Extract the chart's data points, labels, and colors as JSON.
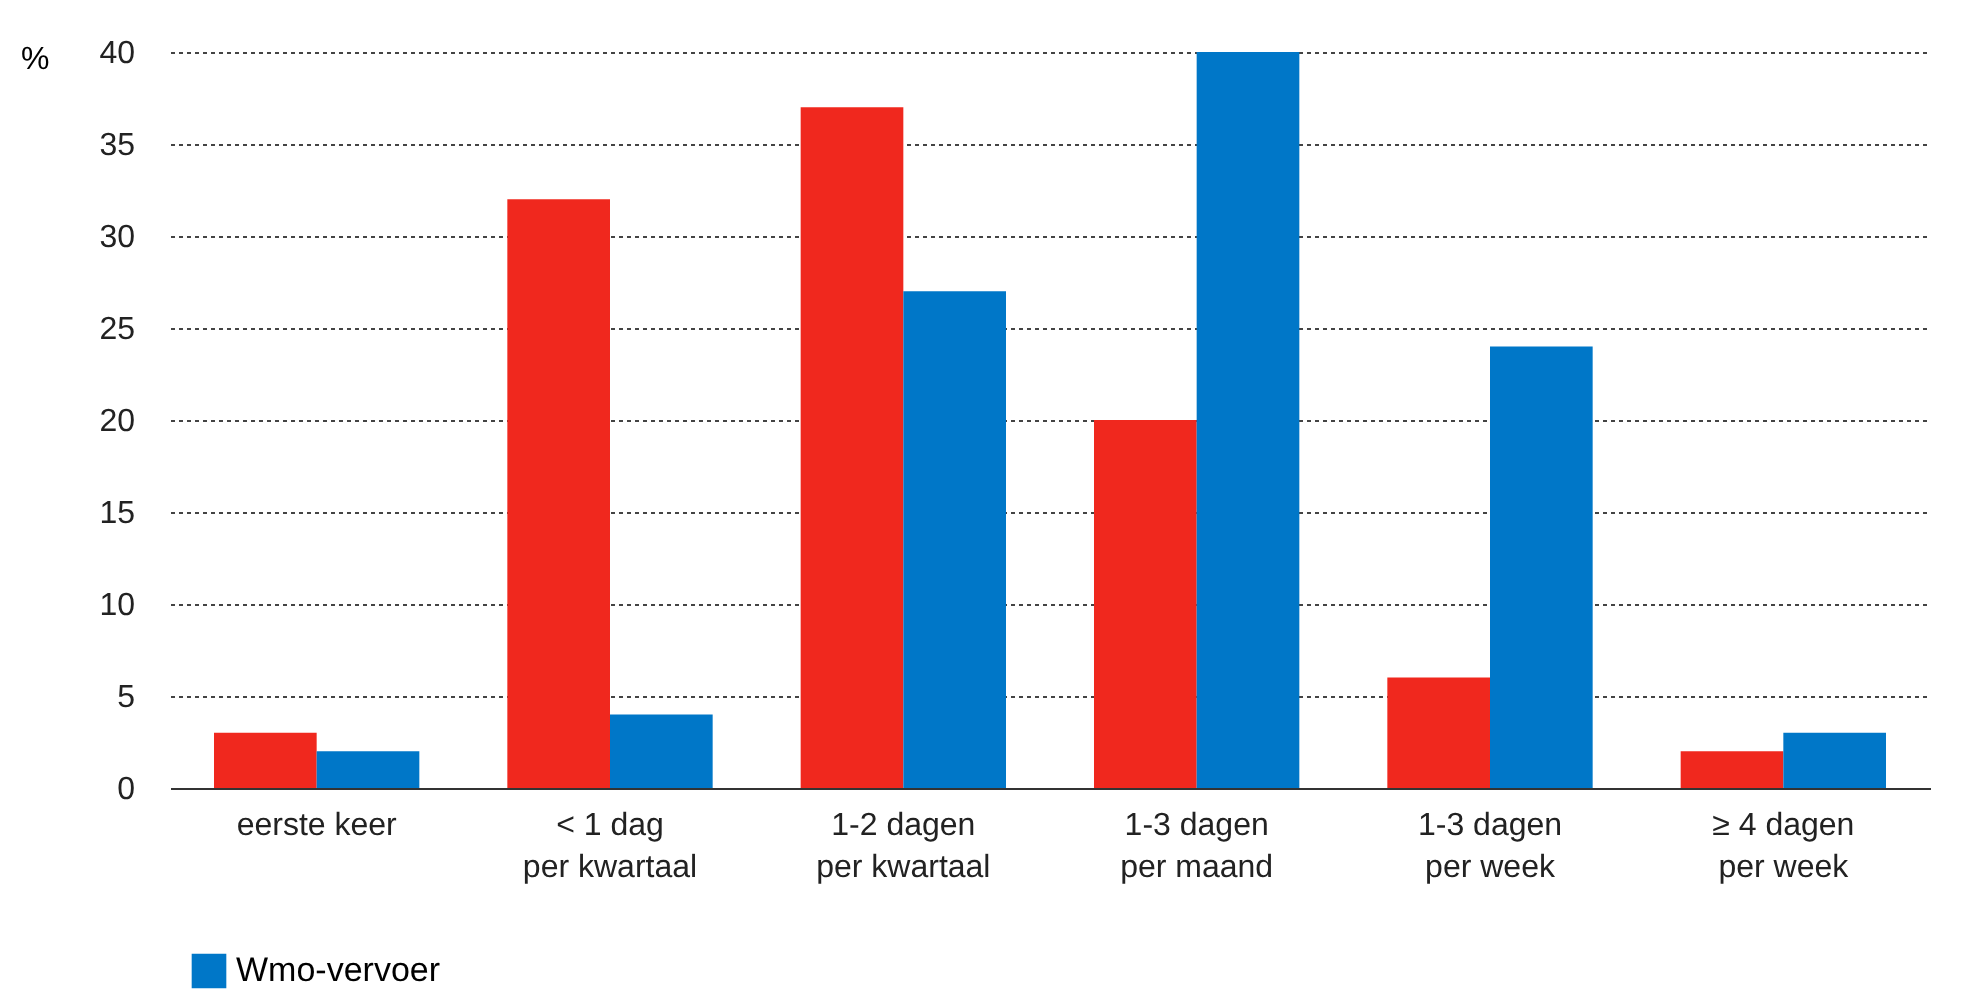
{
  "chart_data": {
    "type": "bar",
    "ylabel": "%",
    "categories": [
      "eerste keer",
      "< 1 dag\nper kwartaal",
      "1-2 dagen\nper kwartaal",
      "1-3 dagen\nper maand",
      "1-3 dagen\nper week",
      "≥ 4 dagen\nper week"
    ],
    "series": [
      {
        "color": "#f0281e",
        "values": [
          3,
          32,
          37,
          20,
          6,
          2
        ]
      },
      {
        "name": "Wmo-vervoer",
        "color": "#0077c8",
        "values": [
          2,
          4,
          27,
          40,
          24,
          3
        ]
      }
    ],
    "ylim": [
      0,
      40
    ],
    "yticks": [
      0,
      5,
      10,
      15,
      20,
      25,
      30,
      35,
      40
    ],
    "grid": "y",
    "legend": "bottom"
  }
}
